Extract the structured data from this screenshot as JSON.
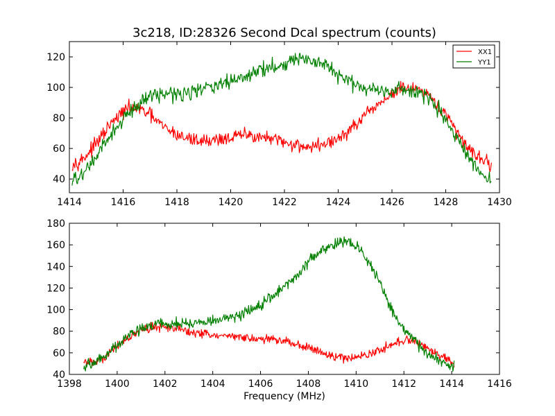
{
  "chart_data": [
    {
      "type": "line",
      "title": "3c218, ID:28326 Second Dcal spectrum (counts)",
      "xlabel": "",
      "ylabel": "",
      "xlim": [
        1414,
        1430
      ],
      "ylim": [
        31,
        130
      ],
      "xticks": [
        1414,
        1416,
        1418,
        1420,
        1422,
        1424,
        1426,
        1428,
        1430
      ],
      "yticks": [
        40,
        60,
        80,
        100,
        120
      ],
      "grid": false,
      "legend": {
        "position": "top-right",
        "entries": [
          {
            "label": "XX1",
            "color": "#ff0000"
          },
          {
            "label": "YY1",
            "color": "#008000"
          }
        ]
      },
      "series": [
        {
          "name": "XX1",
          "color": "#ff0000",
          "noise": 2.2,
          "x_range": [
            1414.1,
            1429.7
          ],
          "points": [
            [
              1414.1,
              50
            ],
            [
              1414.5,
              53
            ],
            [
              1415.0,
              63
            ],
            [
              1415.5,
              75
            ],
            [
              1416.0,
              84
            ],
            [
              1416.3,
              87
            ],
            [
              1416.7,
              85
            ],
            [
              1417.0,
              82
            ],
            [
              1417.5,
              74
            ],
            [
              1418.0,
              69
            ],
            [
              1418.5,
              66
            ],
            [
              1419.0,
              65
            ],
            [
              1419.5,
              66
            ],
            [
              1420.0,
              67
            ],
            [
              1420.5,
              69
            ],
            [
              1421.0,
              68
            ],
            [
              1421.5,
              66
            ],
            [
              1422.0,
              64
            ],
            [
              1422.5,
              62
            ],
            [
              1423.0,
              61
            ],
            [
              1423.5,
              63
            ],
            [
              1424.0,
              66
            ],
            [
              1424.5,
              73
            ],
            [
              1425.0,
              81
            ],
            [
              1425.5,
              89
            ],
            [
              1426.0,
              96
            ],
            [
              1426.5,
              100
            ],
            [
              1427.0,
              98
            ],
            [
              1427.5,
              92
            ],
            [
              1428.0,
              82
            ],
            [
              1428.5,
              68
            ],
            [
              1429.0,
              58
            ],
            [
              1429.3,
              54
            ],
            [
              1429.7,
              49
            ]
          ]
        },
        {
          "name": "YY1",
          "color": "#008000",
          "noise": 2.4,
          "x_range": [
            1414.1,
            1429.7
          ],
          "points": [
            [
              1414.1,
              38
            ],
            [
              1414.5,
              43
            ],
            [
              1415.0,
              54
            ],
            [
              1415.5,
              68
            ],
            [
              1416.0,
              79
            ],
            [
              1416.5,
              88
            ],
            [
              1417.0,
              95
            ],
            [
              1417.5,
              96
            ],
            [
              1418.0,
              96
            ],
            [
              1418.5,
              97
            ],
            [
              1419.0,
              99
            ],
            [
              1419.5,
              101
            ],
            [
              1420.0,
              104
            ],
            [
              1420.5,
              107
            ],
            [
              1421.0,
              111
            ],
            [
              1421.5,
              113
            ],
            [
              1422.0,
              116
            ],
            [
              1422.5,
              119
            ],
            [
              1423.0,
              117
            ],
            [
              1423.5,
              114
            ],
            [
              1424.0,
              108
            ],
            [
              1424.5,
              103
            ],
            [
              1425.0,
              100
            ],
            [
              1425.5,
              98
            ],
            [
              1426.0,
              98
            ],
            [
              1426.5,
              99
            ],
            [
              1427.0,
              97
            ],
            [
              1427.5,
              90
            ],
            [
              1428.0,
              79
            ],
            [
              1428.5,
              63
            ],
            [
              1429.0,
              49
            ],
            [
              1429.3,
              44
            ],
            [
              1429.7,
              40
            ]
          ]
        }
      ]
    },
    {
      "type": "line",
      "title": "",
      "xlabel": "Frequency (MHz)",
      "ylabel": "",
      "xlim": [
        1398,
        1416
      ],
      "ylim": [
        40,
        180
      ],
      "xticks": [
        1398,
        1400,
        1402,
        1404,
        1406,
        1408,
        1410,
        1412,
        1414,
        1416
      ],
      "yticks": [
        40,
        60,
        80,
        100,
        120,
        140,
        160,
        180
      ],
      "grid": false,
      "series": [
        {
          "name": "XX1",
          "color": "#ff0000",
          "noise": 2.0,
          "x_range": [
            1398.6,
            1414.1
          ],
          "points": [
            [
              1398.6,
              51
            ],
            [
              1399.0,
              51
            ],
            [
              1399.5,
              56
            ],
            [
              1400.0,
              67
            ],
            [
              1400.5,
              75
            ],
            [
              1401.0,
              81
            ],
            [
              1401.5,
              84
            ],
            [
              1402.0,
              84
            ],
            [
              1402.5,
              82
            ],
            [
              1403.0,
              80
            ],
            [
              1403.5,
              78
            ],
            [
              1404.0,
              76
            ],
            [
              1404.5,
              75
            ],
            [
              1405.0,
              75
            ],
            [
              1405.5,
              74
            ],
            [
              1406.0,
              73
            ],
            [
              1406.5,
              72
            ],
            [
              1407.0,
              71
            ],
            [
              1407.5,
              68
            ],
            [
              1408.0,
              65
            ],
            [
              1408.5,
              61
            ],
            [
              1409.0,
              57
            ],
            [
              1409.5,
              55
            ],
            [
              1410.0,
              56
            ],
            [
              1410.5,
              58
            ],
            [
              1411.0,
              63
            ],
            [
              1411.5,
              68
            ],
            [
              1412.0,
              71
            ],
            [
              1412.5,
              70
            ],
            [
              1413.0,
              65
            ],
            [
              1413.5,
              57
            ],
            [
              1414.1,
              51
            ]
          ]
        },
        {
          "name": "YY1",
          "color": "#008000",
          "noise": 2.5,
          "x_range": [
            1398.6,
            1414.1
          ],
          "points": [
            [
              1398.6,
              47
            ],
            [
              1399.0,
              51
            ],
            [
              1399.5,
              57
            ],
            [
              1400.0,
              67
            ],
            [
              1400.5,
              76
            ],
            [
              1401.0,
              83
            ],
            [
              1401.5,
              86
            ],
            [
              1402.0,
              87
            ],
            [
              1402.5,
              87
            ],
            [
              1403.0,
              87
            ],
            [
              1403.5,
              88
            ],
            [
              1404.0,
              89
            ],
            [
              1404.5,
              92
            ],
            [
              1405.0,
              94
            ],
            [
              1405.5,
              99
            ],
            [
              1406.0,
              104
            ],
            [
              1406.5,
              111
            ],
            [
              1407.0,
              122
            ],
            [
              1407.5,
              132
            ],
            [
              1408.0,
              144
            ],
            [
              1408.5,
              154
            ],
            [
              1409.0,
              160
            ],
            [
              1409.5,
              165
            ],
            [
              1410.0,
              160
            ],
            [
              1410.5,
              145
            ],
            [
              1411.0,
              125
            ],
            [
              1411.5,
              100
            ],
            [
              1412.0,
              82
            ],
            [
              1412.5,
              70
            ],
            [
              1413.0,
              60
            ],
            [
              1413.5,
              52
            ],
            [
              1414.1,
              47
            ]
          ]
        }
      ]
    }
  ]
}
